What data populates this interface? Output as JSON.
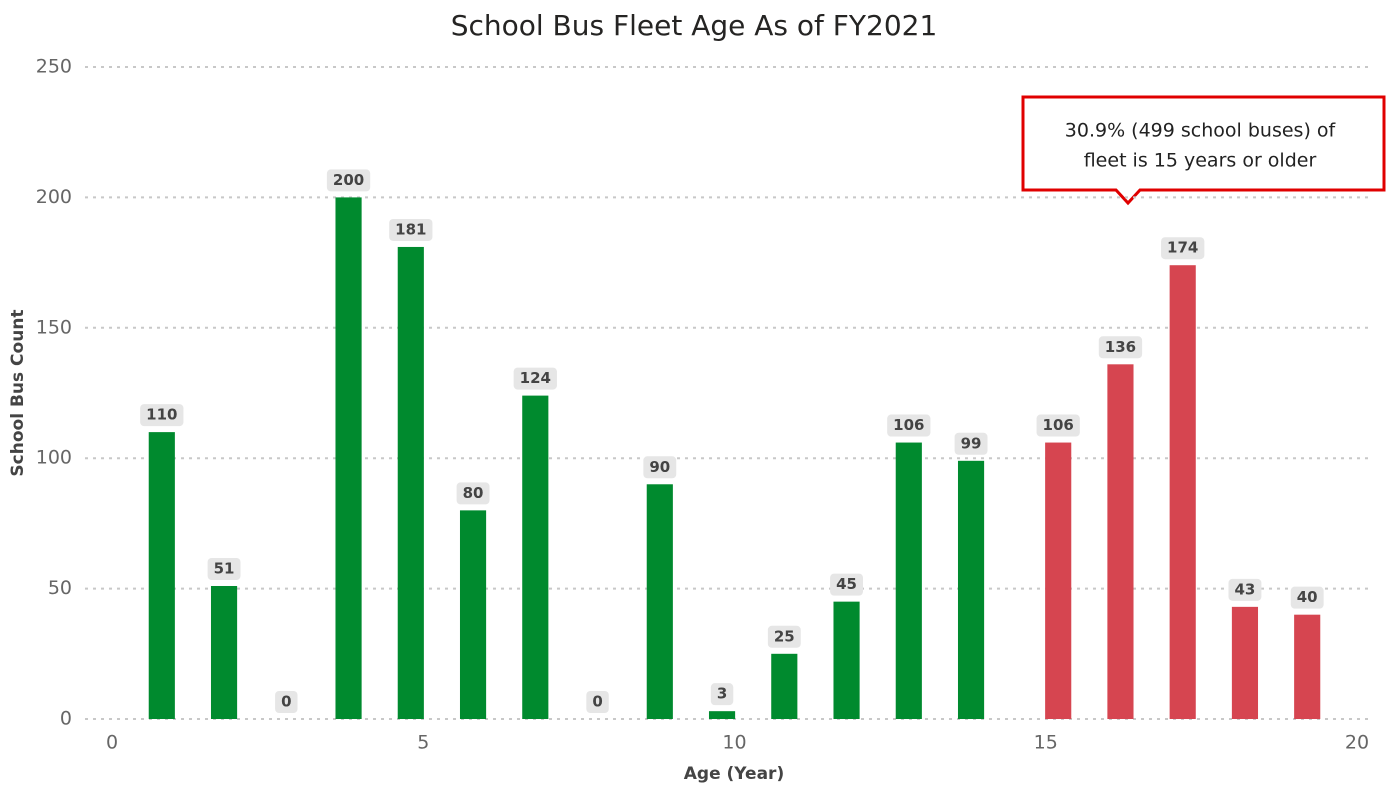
{
  "chart_data": {
    "type": "bar",
    "title": "School Bus Fleet Age As of FY2021",
    "x_label": "Age (Year)",
    "y_label": "School Bus Count",
    "x": [
      1,
      2,
      3,
      4,
      5,
      6,
      7,
      8,
      9,
      10,
      11,
      12,
      13,
      14,
      15,
      16,
      17,
      18,
      19
    ],
    "series": [
      {
        "color": "#008a2e",
        "values": [
          110,
          51,
          0,
          200,
          181,
          80,
          124,
          0,
          90,
          3,
          25,
          45,
          106,
          99,
          null,
          null,
          null,
          null,
          null
        ]
      },
      {
        "color": "#d64550",
        "values": [
          null,
          null,
          null,
          null,
          null,
          null,
          null,
          null,
          null,
          null,
          null,
          null,
          null,
          null,
          106,
          136,
          174,
          43,
          40
        ]
      }
    ],
    "xlim": [
      0,
      20
    ],
    "xticks": [
      0,
      5,
      10,
      15,
      20
    ],
    "ylim": [
      0,
      250
    ],
    "yticks": [
      0,
      50,
      100,
      150,
      200,
      250
    ],
    "grid": true,
    "annotation": [
      "30.9% (499 school buses) of",
      "fleet is 15 years or older"
    ]
  }
}
